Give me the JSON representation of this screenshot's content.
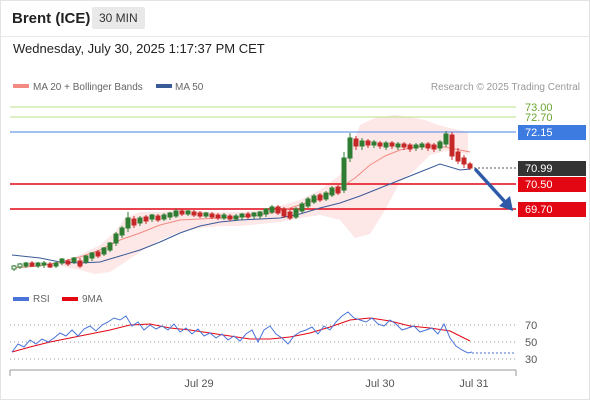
{
  "header": {
    "instrument": "Brent (ICE)",
    "timeframe": "30 MIN"
  },
  "datetime": "Wednesday, July 30, 2025 1:17:37 PM CET",
  "legend": {
    "ma20": "MA 20 + Bollinger Bands",
    "ma50": "MA 50",
    "credit": "Research © 2025 Trading Central",
    "colors": {
      "ma20": "#f28b82",
      "ma50": "#3a5a98"
    }
  },
  "levels": [
    {
      "label": "73.00",
      "kind": "resistance-light",
      "color": "#8cc63f"
    },
    {
      "label": "72.70",
      "kind": "resistance-light",
      "color": "#8cc63f"
    },
    {
      "label": "72.15",
      "kind": "pivot",
      "color": "#3d7be0"
    },
    {
      "label": "70.99",
      "kind": "last-price",
      "color": "#333333"
    },
    {
      "label": "70.50",
      "kind": "support",
      "color": "#e30613"
    },
    {
      "label": "69.70",
      "kind": "support",
      "color": "#e30613"
    }
  ],
  "rsi_legend": {
    "rsi": "RSI",
    "ma": "9MA",
    "colors": {
      "rsi": "#4a74d9",
      "ma": "#e30613"
    }
  },
  "rsi_levels": [
    "70",
    "50",
    "30"
  ],
  "x_axis": [
    "Jul 29",
    "Jul 30",
    "Jul 31"
  ]
}
